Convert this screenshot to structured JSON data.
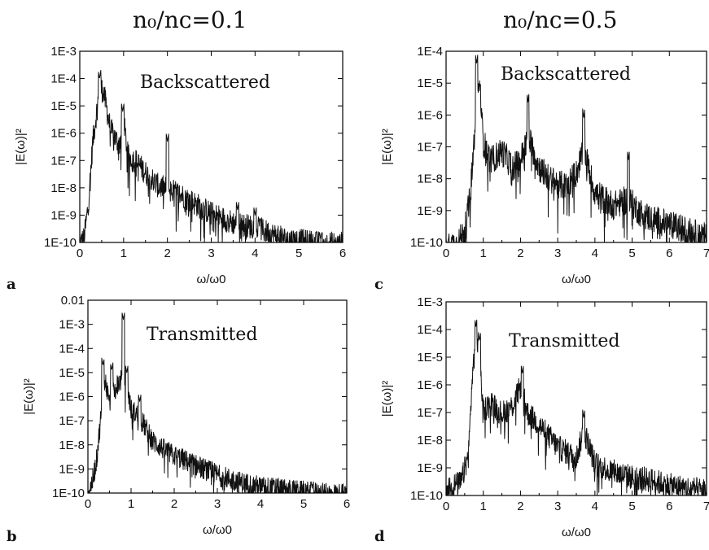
{
  "titles": {
    "left": "n₀/nᴄ=0.1",
    "right": "n₀/nᴄ=0.5"
  },
  "colors": {
    "trace": "#111111",
    "axis": "#000000"
  },
  "chart_data": [
    {
      "type": "line",
      "panel": "a",
      "annotation": "Backscattered",
      "xlabel": "ω/ω0",
      "ylabel": "|E(ω)|²",
      "yscale": "log",
      "xlim": [
        0,
        6
      ],
      "ylim_exp": [
        -10,
        -3
      ],
      "xticks": [
        0,
        1,
        2,
        3,
        4,
        5,
        6
      ],
      "yticks": [
        "1E-10",
        "1E-9",
        "1E-8",
        "1E-7",
        "1E-6",
        "1E-5",
        "1E-4",
        "1E-3"
      ],
      "envelope": {
        "x": [
          0,
          0.1,
          0.2,
          0.3,
          0.4,
          0.45,
          0.55,
          0.7,
          0.9,
          1.0,
          1.1,
          1.3,
          1.5,
          1.8,
          2.0,
          2.3,
          2.6,
          3.0,
          3.3,
          3.6,
          4.0,
          4.3,
          4.6,
          5.0,
          5.5,
          6.0
        ],
        "y": [
          -10.0,
          -9.8,
          -8.5,
          -6.2,
          -5.0,
          -4.2,
          -4.5,
          -5.8,
          -6.4,
          -5.5,
          -6.8,
          -7.0,
          -7.4,
          -7.9,
          -8.0,
          -8.2,
          -8.5,
          -8.9,
          -9.1,
          -9.3,
          -9.4,
          -9.6,
          -9.8,
          -9.9,
          -10.0,
          -10.0
        ]
      },
      "peaks": [
        [
          0.45,
          -4.0
        ],
        [
          0.98,
          -5.2
        ],
        [
          2.0,
          -6.3
        ],
        [
          3.6,
          -8.8
        ],
        [
          4.0,
          -9.0
        ],
        [
          4.1,
          -9.4
        ],
        [
          5.5,
          -9.9
        ]
      ]
    },
    {
      "type": "line",
      "panel": "b",
      "annotation": "Transmitted",
      "xlabel": "ω/ω0",
      "ylabel": "|E(ω)|²",
      "yscale": "log",
      "xlim": [
        0,
        6
      ],
      "ylim_exp": [
        -10,
        -2
      ],
      "xticks": [
        0,
        1,
        2,
        3,
        4,
        5,
        6
      ],
      "yticks": [
        "1E-10",
        "1E-9",
        "1E-8",
        "1E-7",
        "1E-6",
        "1E-5",
        "1E-4",
        "1E-3",
        "0.01"
      ],
      "envelope": {
        "x": [
          0,
          0.1,
          0.2,
          0.3,
          0.4,
          0.5,
          0.6,
          0.7,
          0.8,
          0.9,
          1.0,
          1.2,
          1.5,
          1.8,
          2.0,
          2.5,
          3.0,
          3.5,
          4.0,
          4.5,
          5.0,
          5.5,
          6.0
        ],
        "y": [
          -10.0,
          -9.5,
          -8.6,
          -6.8,
          -5.3,
          -6.2,
          -5.8,
          -5.4,
          -5.2,
          -5.4,
          -6.5,
          -6.8,
          -7.8,
          -8.2,
          -8.4,
          -8.8,
          -9.2,
          -9.5,
          -9.7,
          -9.8,
          -9.9,
          -10.0,
          -10.0
        ]
      },
      "peaks": [
        [
          0.35,
          -4.7
        ],
        [
          0.55,
          -4.9
        ],
        [
          0.82,
          -2.8
        ],
        [
          0.9,
          -5.0
        ],
        [
          1.2,
          -6.2
        ],
        [
          5.2,
          -9.8
        ]
      ]
    },
    {
      "type": "line",
      "panel": "c",
      "annotation": "Backscattered",
      "xlabel": "ω/ω0",
      "ylabel": "|E(ω)|²",
      "yscale": "log",
      "xlim": [
        0,
        7
      ],
      "ylim_exp": [
        -10,
        -4
      ],
      "xticks": [
        0,
        1,
        2,
        3,
        4,
        5,
        6,
        7
      ],
      "yticks": [
        "1E-10",
        "1E-9",
        "1E-8",
        "1E-7",
        "1E-6",
        "1E-5",
        "1E-4"
      ],
      "envelope": {
        "x": [
          0,
          0.3,
          0.5,
          0.65,
          0.8,
          0.9,
          1.0,
          1.2,
          1.5,
          1.8,
          2.0,
          2.2,
          2.5,
          2.8,
          3.2,
          3.5,
          3.7,
          4.0,
          4.5,
          4.9,
          5.2,
          5.5,
          6.0,
          6.5,
          7.0
        ],
        "y": [
          -10.0,
          -10.0,
          -9.6,
          -8.5,
          -6.0,
          -5.0,
          -6.8,
          -7.4,
          -7.1,
          -7.6,
          -7.4,
          -6.6,
          -7.6,
          -8.0,
          -8.2,
          -7.8,
          -7.0,
          -8.4,
          -8.8,
          -8.6,
          -9.0,
          -9.2,
          -9.4,
          -9.6,
          -9.8
        ]
      },
      "peaks": [
        [
          0.82,
          -4.4
        ],
        [
          0.9,
          -5.3
        ],
        [
          2.2,
          -5.6
        ],
        [
          3.7,
          -6.1
        ],
        [
          4.9,
          -7.4
        ]
      ]
    },
    {
      "type": "line",
      "panel": "d",
      "annotation": "Transmitted",
      "xlabel": "ω/ω0",
      "ylabel": "|E(ω)|²",
      "yscale": "log",
      "xlim": [
        0,
        7
      ],
      "ylim_exp": [
        -10,
        -3
      ],
      "xticks": [
        0,
        1,
        2,
        3,
        4,
        5,
        6,
        7
      ],
      "yticks": [
        "1E-10",
        "1E-9",
        "1E-8",
        "1E-7",
        "1E-6",
        "1E-5",
        "1E-4",
        "1E-3"
      ],
      "envelope": {
        "x": [
          0,
          0.4,
          0.6,
          0.7,
          0.8,
          0.9,
          1.0,
          1.2,
          1.5,
          1.8,
          2.0,
          2.2,
          2.5,
          3.0,
          3.5,
          3.7,
          4.0,
          4.5,
          5.0,
          5.5,
          6.0,
          6.5,
          7.0
        ],
        "y": [
          -9.7,
          -9.5,
          -8.5,
          -5.8,
          -4.2,
          -4.8,
          -6.9,
          -6.6,
          -7.0,
          -6.7,
          -6.0,
          -7.0,
          -7.4,
          -8.2,
          -8.6,
          -7.6,
          -8.8,
          -9.1,
          -9.3,
          -9.4,
          -9.6,
          -9.7,
          -9.8
        ]
      },
      "peaks": [
        [
          0.8,
          -3.9
        ],
        [
          0.9,
          -4.4
        ],
        [
          2.05,
          -5.6
        ],
        [
          3.7,
          -7.2
        ]
      ]
    }
  ]
}
